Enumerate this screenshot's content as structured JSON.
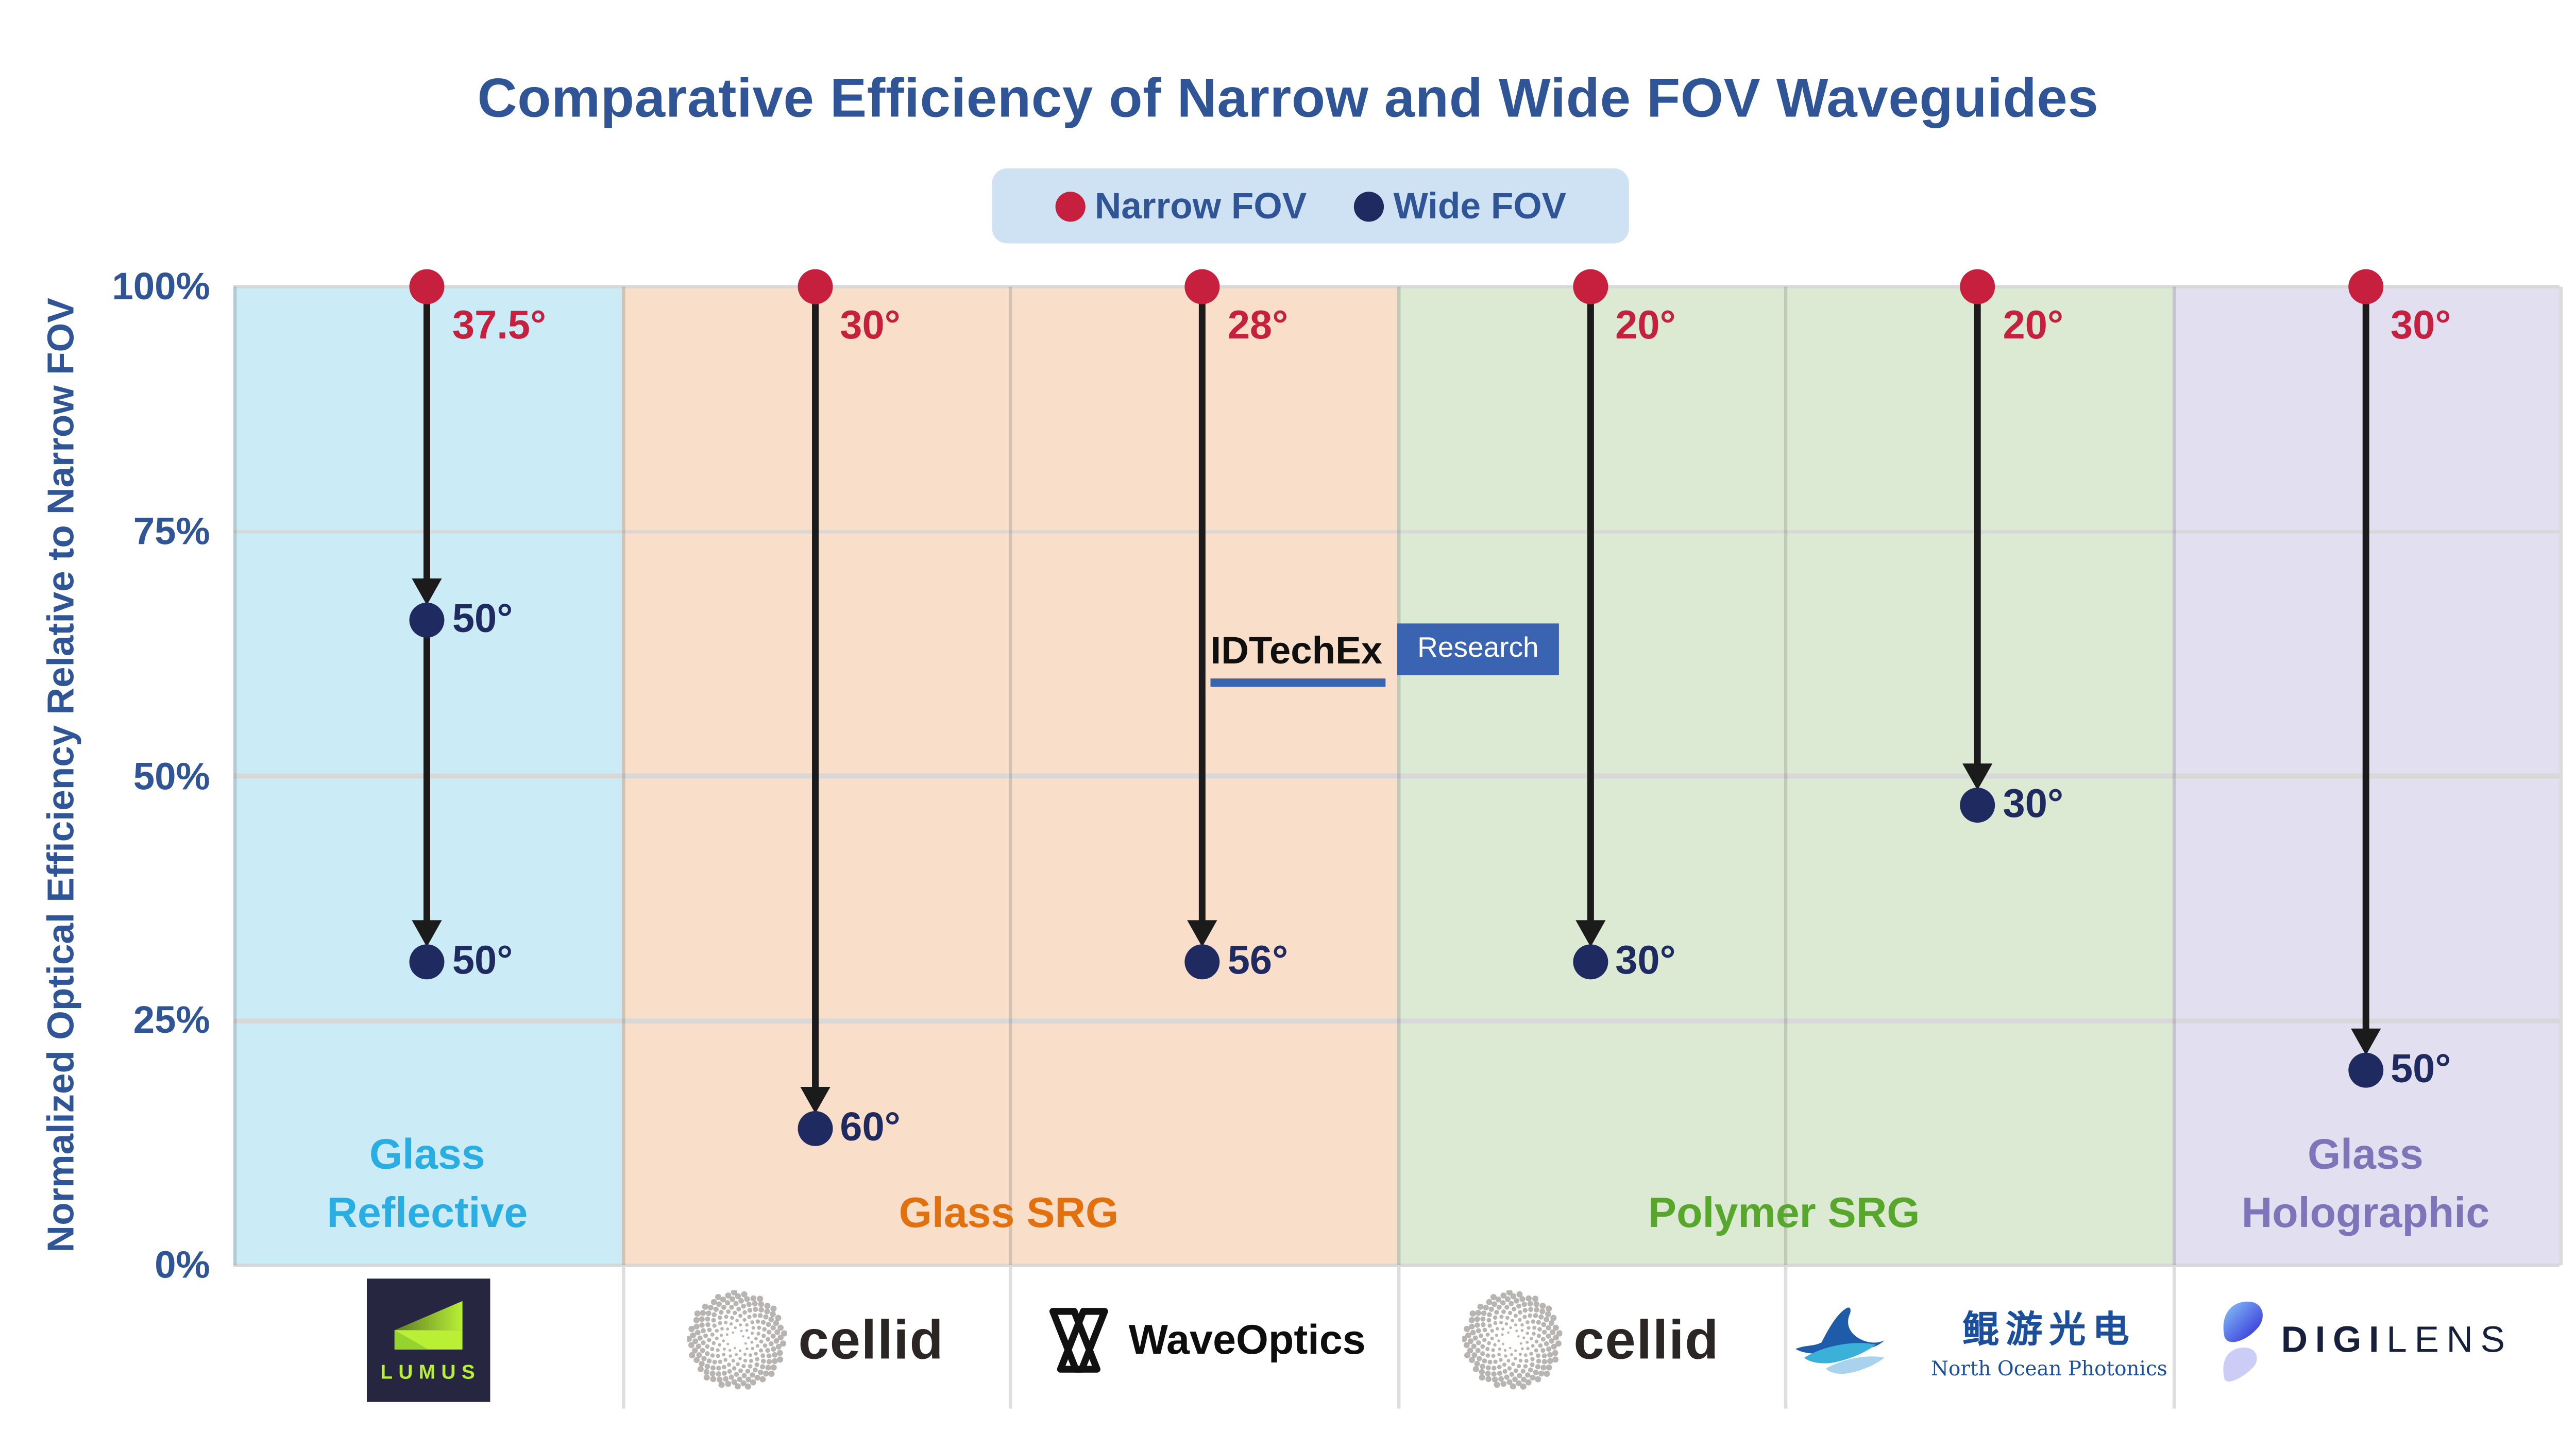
{
  "title": "Comparative Efficiency of Narrow and Wide FOV Waveguides",
  "watermark": {
    "brand": "IDTechEx",
    "tag": "Research"
  },
  "chart_data": {
    "type": "arrow-dumbbell",
    "title": "Comparative Efficiency of Narrow and Wide FOV Waveguides",
    "ylabel": "Normalized Optical Efficiency Relative to Narrow FOV",
    "ylim": [
      0,
      100
    ],
    "grid": true,
    "legend_position": "top-center",
    "yticks": [
      {
        "label": "100%",
        "value": 100
      },
      {
        "label": "75%",
        "value": 75
      },
      {
        "label": "50%",
        "value": 50
      },
      {
        "label": "25%",
        "value": 25
      },
      {
        "label": "0%",
        "value": 0
      }
    ],
    "legend": [
      {
        "label": "Narrow FOV",
        "color": "#C71F3E"
      },
      {
        "label": "Wide FOV",
        "color": "#1F2A60"
      }
    ],
    "groups": [
      {
        "label": "Glass Reflective",
        "lines": [
          "Glass",
          "Reflective"
        ],
        "span": 1,
        "bg": "#CBECF6",
        "color": "#29ADE3"
      },
      {
        "label": "Glass SRG",
        "lines": [
          "Glass SRG"
        ],
        "span": 2,
        "bg": "#F9DECA",
        "color": "#E2710D"
      },
      {
        "label": "Polymer SRG",
        "lines": [
          "Polymer SRG"
        ],
        "span": 2,
        "bg": "#DCEAD3",
        "color": "#57A72C"
      },
      {
        "label": "Glass Holographic",
        "lines": [
          "Glass",
          "Holographic"
        ],
        "span": 1,
        "bg": "#E2E0F0",
        "color": "#7D74B9"
      }
    ],
    "columns": [
      {
        "company": "Lumus",
        "group": "Glass Reflective",
        "narrow": {
          "label": "37.5°",
          "value": 100
        },
        "wide": [
          {
            "label": "50°",
            "value": 66
          },
          {
            "label": "50°",
            "value": 31
          }
        ]
      },
      {
        "company": "Cellid",
        "group": "Glass SRG",
        "narrow": {
          "label": "30°",
          "value": 100
        },
        "wide": [
          {
            "label": "60°",
            "value": 14
          }
        ]
      },
      {
        "company": "WaveOptics",
        "group": "Glass SRG",
        "narrow": {
          "label": "28°",
          "value": 100
        },
        "wide": [
          {
            "label": "56°",
            "value": 31
          }
        ]
      },
      {
        "company": "Cellid",
        "group": "Polymer SRG",
        "narrow": {
          "label": "20°",
          "value": 100
        },
        "wide": [
          {
            "label": "30°",
            "value": 31
          }
        ]
      },
      {
        "company": "North Ocean Photonics",
        "group": "Polymer SRG",
        "narrow": {
          "label": "20°",
          "value": 100
        },
        "wide": [
          {
            "label": "30°",
            "value": 47
          }
        ]
      },
      {
        "company": "DigiLens",
        "group": "Glass Holographic",
        "narrow": {
          "label": "30°",
          "value": 100
        },
        "wide": [
          {
            "label": "50°",
            "value": 20
          }
        ]
      }
    ]
  },
  "logos": {
    "lumus": {
      "text": "LUMUS"
    },
    "cellid": {
      "text": "cellid"
    },
    "waveoptics": {
      "text": "WaveOptics"
    },
    "north_ocean": {
      "cn": "鲲游光电",
      "en": "North Ocean Photonics"
    },
    "digilens": {
      "text_bold": "DIGI",
      "text_light": "LENS"
    }
  }
}
